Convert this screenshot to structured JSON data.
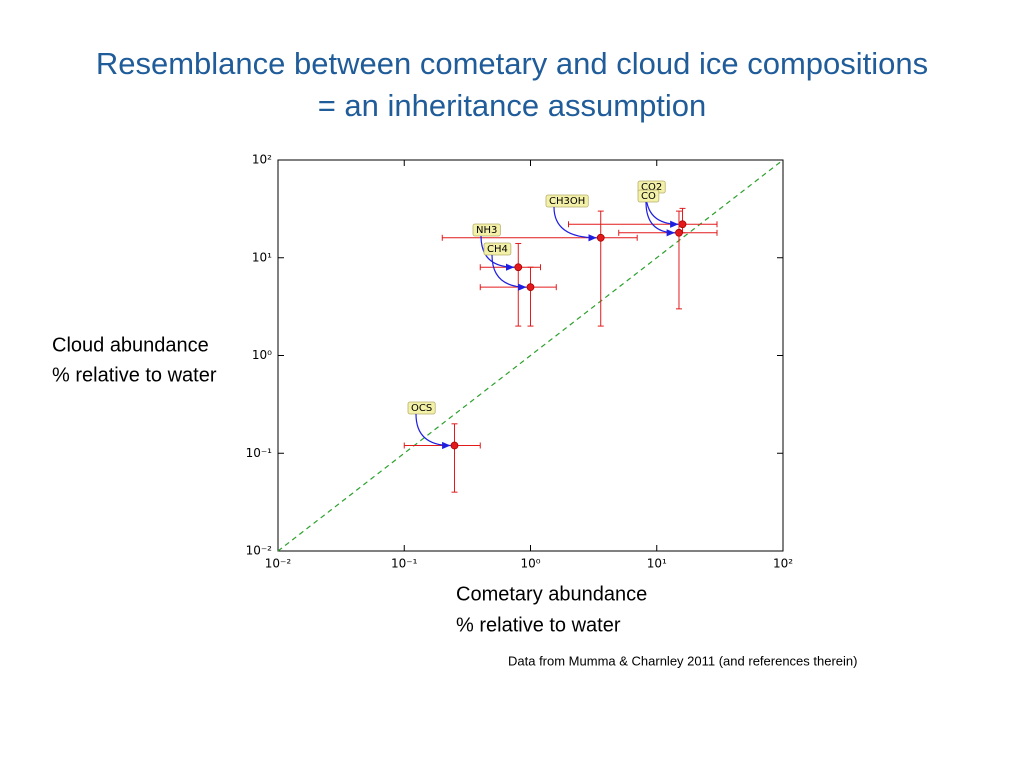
{
  "chart_data": {
    "type": "scatter",
    "title": [
      "Resemblance between cometary and cloud ice compositions",
      "= an inheritance assumption"
    ],
    "xlabel": [
      "Cometary abundance",
      "% relative to water"
    ],
    "ylabel": [
      "Cloud abundance",
      "% relative to water"
    ],
    "source": "Data from Mumma & Charnley 2011 (and references therein)",
    "xscale": "log",
    "yscale": "log",
    "xlim": [
      0.01,
      100
    ],
    "ylim": [
      0.01,
      100
    ],
    "xticks": [
      {
        "value": 0.01,
        "label": "10⁻²"
      },
      {
        "value": 0.1,
        "label": "10⁻¹"
      },
      {
        "value": 1,
        "label": "10⁰"
      },
      {
        "value": 10,
        "label": "10¹"
      },
      {
        "value": 100,
        "label": "10²"
      }
    ],
    "yticks": [
      {
        "value": 0.01,
        "label": "10⁻²"
      },
      {
        "value": 0.1,
        "label": "10⁻¹"
      },
      {
        "value": 1,
        "label": "10⁰"
      },
      {
        "value": 10,
        "label": "10¹"
      },
      {
        "value": 100,
        "label": "10²"
      }
    ],
    "diagonal": true,
    "diagonal_color": "#2ca02c",
    "color": "#e31a1c",
    "arrow_color": "#1f1fe0",
    "series": [
      {
        "name": "CO2",
        "x": 16,
        "y": 22,
        "x_err": [
          2,
          30
        ],
        "y_err": [
          18,
          32
        ]
      },
      {
        "name": "CO",
        "x": 15,
        "y": 18,
        "x_err": [
          5,
          30
        ],
        "y_err": [
          3,
          30
        ]
      },
      {
        "name": "CH3OH",
        "x": 3.6,
        "y": 16,
        "x_err": [
          0.2,
          7
        ],
        "y_err": [
          2,
          30
        ]
      },
      {
        "name": "NH3",
        "x": 0.8,
        "y": 8,
        "x_err": [
          0.4,
          1.2
        ],
        "y_err": [
          2,
          14
        ]
      },
      {
        "name": "CH4",
        "x": 1.0,
        "y": 5,
        "x_err": [
          0.4,
          1.6
        ],
        "y_err": [
          2,
          8
        ]
      },
      {
        "name": "OCS",
        "x": 0.25,
        "y": 0.12,
        "x_err": [
          0.1,
          0.4
        ],
        "y_err": [
          0.04,
          0.2
        ]
      }
    ]
  }
}
